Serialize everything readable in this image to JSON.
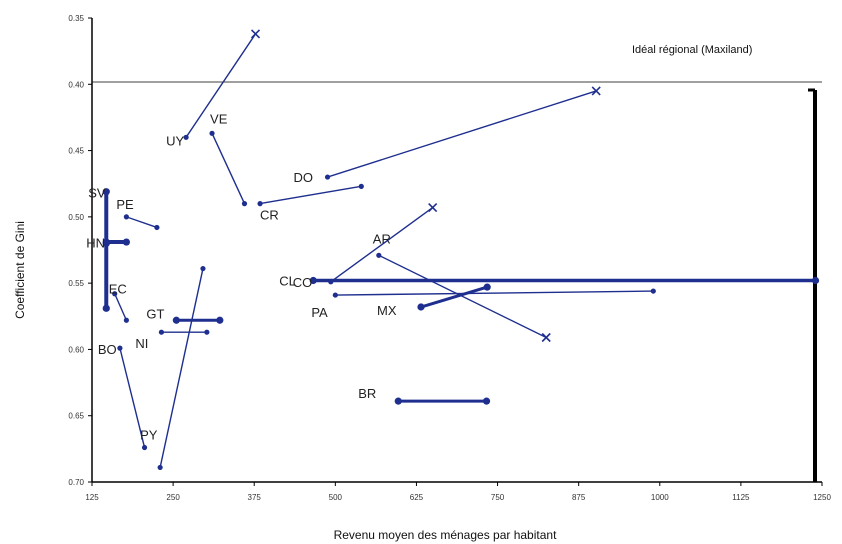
{
  "chart_data": {
    "type": "scatter",
    "title": "",
    "xlabel": "Revenu moyen des ménages par habitant",
    "ylabel": "Coefficient de Gini",
    "x_ticks": [
      "125",
      "250",
      "375",
      "500",
      "625",
      "750",
      "875",
      "1000",
      "1125",
      "1250"
    ],
    "y_ticks": [
      "0.35",
      "0.40",
      "0.45",
      "0.50",
      "0.55",
      "0.60",
      "0.65",
      "0.70"
    ],
    "xlim": [
      125,
      1250
    ],
    "ylim": [
      0.7,
      0.35
    ],
    "reference_line": {
      "label": "Idéal régional (Maxiland)",
      "y": 0.4
    },
    "color": "#1f2f8f",
    "series": [
      {
        "name": "UY",
        "points": [
          [
            270,
            0.44
          ],
          [
            377,
            0.362
          ]
        ]
      },
      {
        "name": "VE",
        "points": [
          [
            310,
            0.437
          ],
          [
            360,
            0.49
          ]
        ]
      },
      {
        "name": "DO",
        "points": [
          [
            488,
            0.47
          ],
          [
            902,
            0.405
          ]
        ]
      },
      {
        "name": "CR",
        "points": [
          [
            384,
            0.49
          ],
          [
            540,
            0.477
          ]
        ]
      },
      {
        "name": "PE",
        "points": [
          [
            178,
            0.5
          ],
          [
            225,
            0.508
          ]
        ]
      },
      {
        "name": "SV",
        "points": [
          [
            147,
            0.481
          ],
          [
            147,
            0.519
          ],
          [
            178,
            0.519
          ]
        ]
      },
      {
        "name": "CO",
        "points": [
          [
            493,
            0.549
          ],
          [
            650,
            0.493
          ]
        ]
      },
      {
        "name": "AR",
        "points": [
          [
            567,
            0.529
          ],
          [
            825,
            0.591
          ]
        ]
      },
      {
        "name": "CL",
        "points": [
          [
            466,
            0.548
          ],
          [
            1240,
            0.548
          ]
        ]
      },
      {
        "name": "PY",
        "points": [
          [
            230,
            0.689
          ],
          [
            296,
            0.539
          ]
        ]
      },
      {
        "name": "EC",
        "points": [
          [
            160,
            0.558
          ],
          [
            178,
            0.578
          ]
        ]
      },
      {
        "name": "HN",
        "points": [
          [
            147,
            0.52
          ],
          [
            147,
            0.569
          ]
        ]
      },
      {
        "name": "GT",
        "points": [
          [
            255,
            0.578
          ],
          [
            322,
            0.578
          ]
        ]
      },
      {
        "name": "PA",
        "points": [
          [
            500,
            0.559
          ],
          [
            990,
            0.556
          ]
        ]
      },
      {
        "name": "MX",
        "points": [
          [
            632,
            0.568
          ],
          [
            734,
            0.553
          ]
        ]
      },
      {
        "name": "BO",
        "points": [
          [
            168,
            0.599
          ],
          [
            206,
            0.674
          ]
        ]
      },
      {
        "name": "NI",
        "points": [
          [
            232,
            0.587
          ],
          [
            302,
            0.587
          ]
        ]
      },
      {
        "name": "BR",
        "points": [
          [
            597,
            0.639
          ],
          [
            733,
            0.639
          ]
        ]
      }
    ]
  }
}
